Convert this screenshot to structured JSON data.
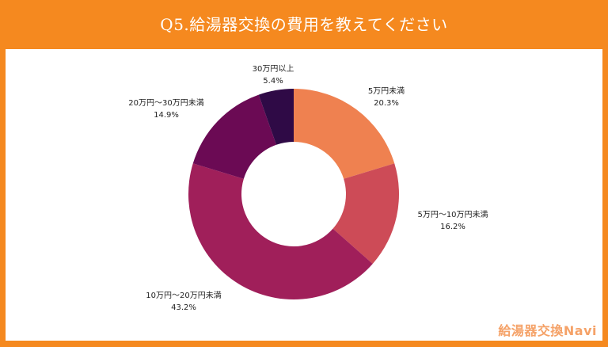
{
  "header": {
    "title": "Q5.給湯器交換の費用を教えてください"
  },
  "brand": {
    "name": "給湯器交換Navi"
  },
  "colors": {
    "frame": "#f5891f",
    "brand_text": "#f5a268"
  },
  "chart_data": {
    "type": "pie",
    "style": "donut",
    "title": "Q5.給湯器交換の費用を教えてください",
    "unit": "%",
    "slices": [
      {
        "label": "5万円未満",
        "value": 20.3,
        "value_label": "20.3%",
        "color": "#ef8150"
      },
      {
        "label": "5万円〜10万円未満",
        "value": 16.2,
        "value_label": "16.2%",
        "color": "#cd4b57"
      },
      {
        "label": "10万円〜20万円未満",
        "value": 43.2,
        "value_label": "43.2%",
        "color": "#a01f5a"
      },
      {
        "label": "20万円〜30万円未満",
        "value": 14.9,
        "value_label": "14.9%",
        "color": "#6b0a54"
      },
      {
        "label": "30万円以上",
        "value": 5.4,
        "value_label": "5.4%",
        "color": "#2f0a46"
      }
    ]
  }
}
